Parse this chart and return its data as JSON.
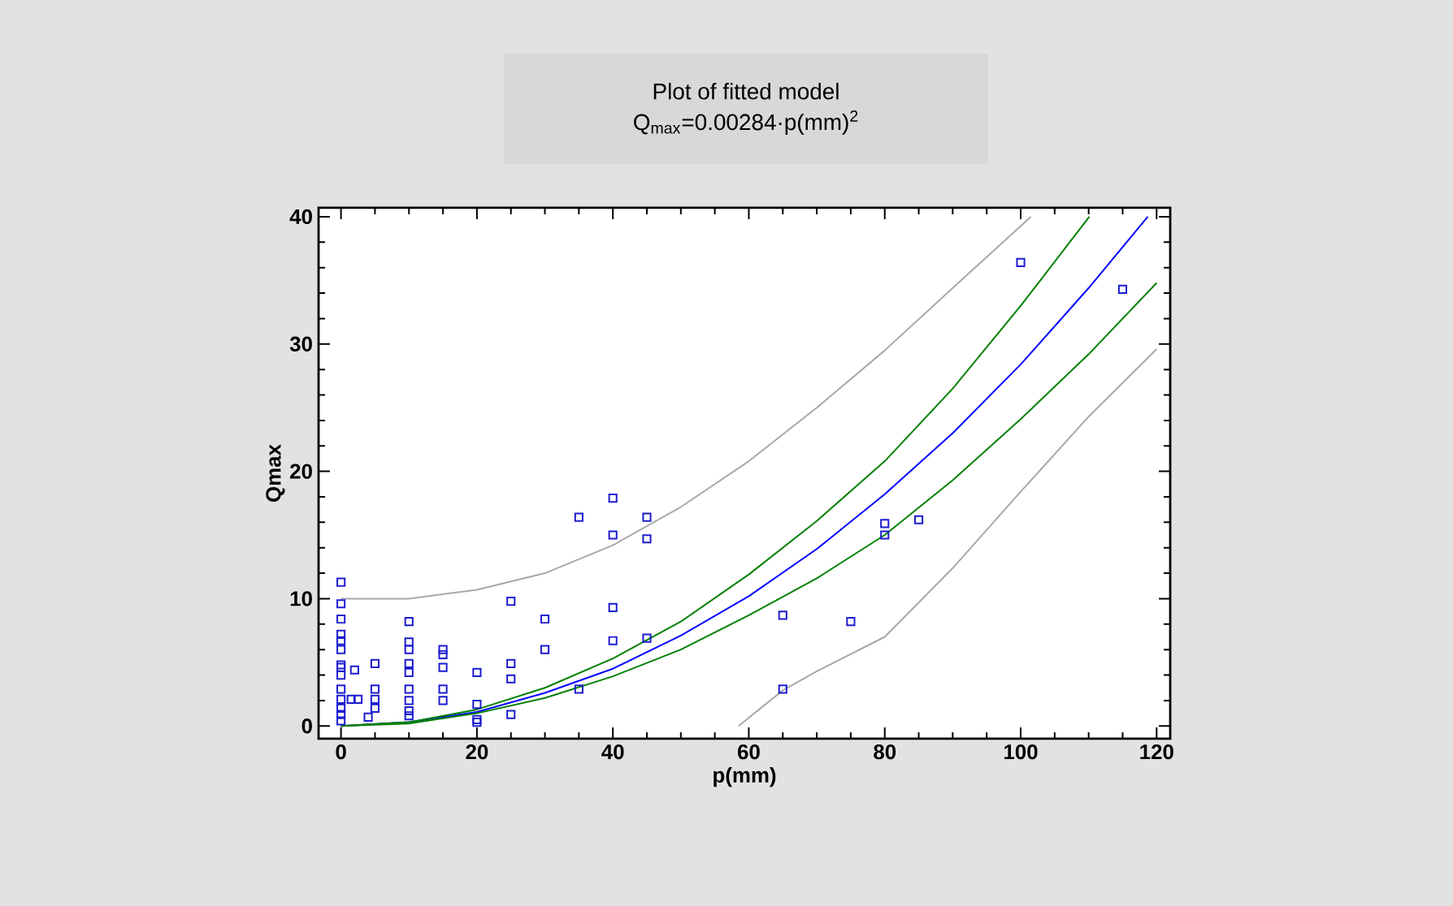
{
  "chart_data": {
    "type": "scatter",
    "title": "Plot of fitted model",
    "subtitle": "Q$_{max}$=0.00284·p(mm)$^{2}$",
    "xlabel": "p(mm)",
    "ylabel": "Qmax",
    "xlim": [
      -3.3,
      122
    ],
    "ylim": [
      -1,
      40.7
    ],
    "xticks": [
      0,
      20,
      40,
      60,
      80,
      100,
      120
    ],
    "yticks": [
      0,
      10,
      20,
      30,
      40
    ],
    "grid": false,
    "marker": "square",
    "series": [
      {
        "color": "#1c1cd0",
        "x": [
          0,
          0,
          0,
          0,
          0,
          0,
          0,
          0,
          0,
          0,
          0,
          0,
          0,
          0,
          1.5,
          2.5,
          2,
          4,
          5,
          5,
          5,
          5,
          10,
          10,
          10,
          10,
          10,
          10,
          10,
          10,
          10,
          15,
          15,
          15,
          15,
          15,
          20,
          20,
          20,
          20,
          25,
          25,
          25,
          25,
          30,
          30,
          35,
          35,
          40,
          40,
          40,
          40,
          45,
          45,
          45,
          65,
          65,
          75,
          80,
          80,
          85,
          100,
          115
        ],
        "values": [
          11.3,
          9.6,
          8.4,
          7.2,
          6.7,
          6.0,
          4.8,
          4.6,
          4.0,
          2.9,
          2.1,
          1.4,
          0.9,
          0.4,
          2.1,
          2.1,
          4.4,
          0.7,
          4.9,
          2.9,
          2.1,
          1.4,
          8.2,
          6.6,
          6.0,
          4.9,
          4.2,
          2.9,
          2.0,
          1.2,
          0.8,
          6.0,
          5.6,
          4.6,
          2.9,
          2.0,
          4.2,
          1.7,
          0.5,
          0.3,
          9.8,
          4.9,
          3.7,
          0.9,
          8.4,
          6.0,
          16.4,
          2.9,
          17.9,
          15.0,
          9.3,
          6.7,
          16.4,
          14.7,
          6.9,
          8.7,
          2.9,
          8.2,
          15.9,
          15.0,
          16.2,
          36.4,
          34.3
        ]
      },
      {
        "type": "line",
        "color": "#0000ff",
        "marker": "none",
        "x": [
          0,
          10,
          20,
          30,
          40,
          50,
          60,
          70,
          80,
          90,
          100,
          110,
          118.7
        ],
        "values": [
          0,
          0.3,
          1.1,
          2.6,
          4.5,
          7.1,
          10.2,
          13.9,
          18.2,
          23.0,
          28.4,
          34.4,
          40
        ]
      },
      {
        "type": "line",
        "color": "#008000",
        "marker": "none",
        "x": [
          0,
          10,
          20,
          30,
          40,
          50,
          60,
          70,
          80,
          90,
          100,
          110.1
        ],
        "values": [
          0,
          0.3,
          1.3,
          3.0,
          5.3,
          8.2,
          11.9,
          16.1,
          20.8,
          26.5,
          33.0,
          40
        ]
      },
      {
        "type": "line",
        "color": "#008000",
        "marker": "none",
        "x": [
          0,
          10,
          20,
          30,
          40,
          50,
          60,
          70,
          80,
          90,
          100,
          110,
          120
        ],
        "values": [
          0,
          0.2,
          1.0,
          2.2,
          3.9,
          6.0,
          8.7,
          11.6,
          15.0,
          19.3,
          24.1,
          29.2,
          34.8
        ]
      },
      {
        "type": "line",
        "color": "#a8a8a8",
        "marker": "none",
        "x": [
          0,
          10,
          20,
          30,
          40,
          50,
          60,
          70,
          80,
          90,
          101.5
        ],
        "values": [
          10,
          10,
          10.7,
          12,
          14.2,
          17.2,
          20.8,
          25,
          29.5,
          34.4,
          40
        ]
      },
      {
        "type": "line",
        "color": "#a8a8a8",
        "marker": "none",
        "x": [
          58.5,
          65,
          70,
          80,
          90,
          100,
          110,
          120
        ],
        "values": [
          0,
          2.8,
          4.3,
          7.0,
          12.4,
          18.4,
          24.3,
          29.6
        ]
      }
    ]
  }
}
